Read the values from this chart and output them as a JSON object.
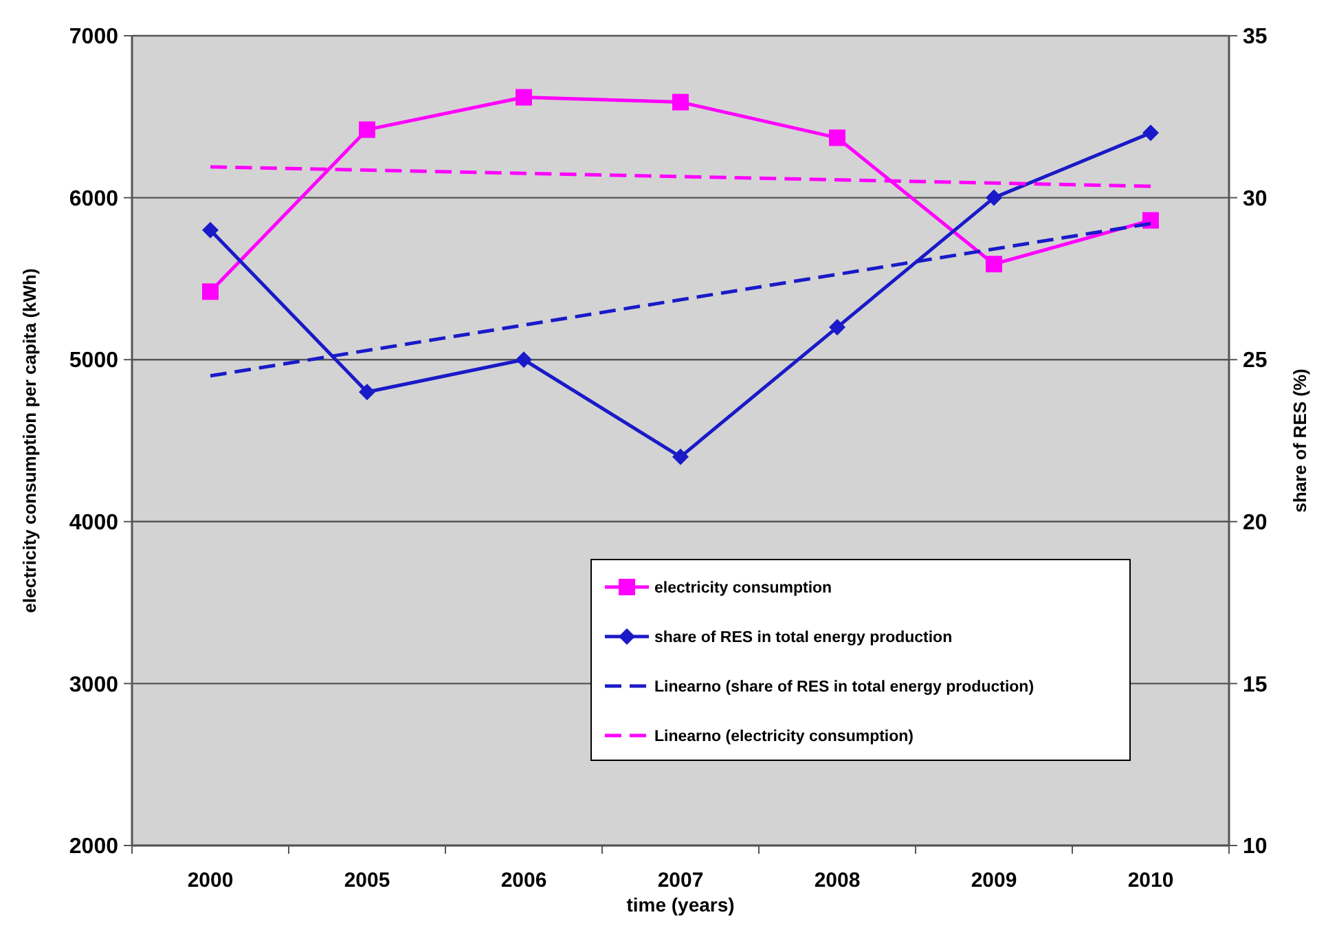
{
  "chart_data": {
    "type": "line",
    "xlabel": "time (years)",
    "ylabel": "electricity consumption per capita (kWh)",
    "y2label": "share of RES (%)",
    "categories": [
      "2000",
      "2005",
      "2006",
      "2007",
      "2008",
      "2009",
      "2010"
    ],
    "ylim": [
      2000,
      7000
    ],
    "yticks": [
      2000,
      3000,
      4000,
      5000,
      6000,
      7000
    ],
    "y2lim": [
      10,
      35
    ],
    "y2ticks": [
      10,
      15,
      20,
      25,
      30,
      35
    ],
    "grid": "y",
    "legend": "bottom right",
    "series": [
      {
        "name": "electricity consumption",
        "color": "#ff00ff",
        "marker": "square",
        "line_style": "solid",
        "values": [
          5420,
          6420,
          6620,
          6590,
          6370,
          5590,
          5860
        ]
      },
      {
        "name": "share of RES in total energy production",
        "color": "#1a1ac8",
        "marker": "diamond",
        "line_style": "solid",
        "axis": "y2",
        "values": [
          29,
          24,
          25,
          22,
          26,
          30,
          32
        ]
      },
      {
        "name": "Linearno (share of RES in total energy production)",
        "color": "#1a1ac8",
        "marker": "none",
        "line_style": "dashed",
        "axis": "y2",
        "values": [
          24.5,
          null,
          null,
          null,
          null,
          null,
          29.2
        ]
      },
      {
        "name": "Linearno (electricity consumption)",
        "color": "#ff00ff",
        "marker": "none",
        "line_style": "dashed",
        "values": [
          6190,
          null,
          null,
          null,
          null,
          null,
          6070
        ]
      }
    ]
  }
}
